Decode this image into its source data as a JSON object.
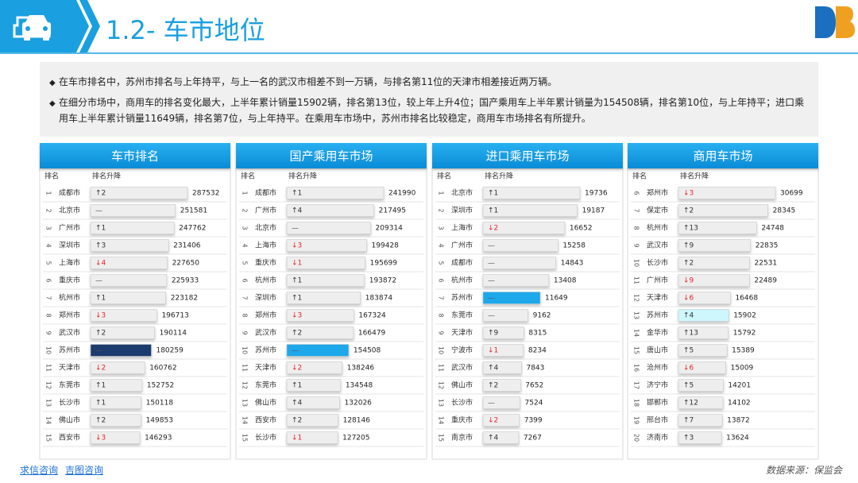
{
  "header": {
    "title": "1.2- 车市地位"
  },
  "bullets": [
    "在车市排名中，苏州市排名与上年持平，与上一名的武汉市相差不到一万辆，与排名第11位的天津市相差接近两万辆。",
    "在细分市场中，商用车的排名变化最大，上半年累计销量15902辆，排名第13位，较上年上升4位；国产乘用车上半年累计销量为154508辆，排名第10位，与上年持平；进口乘用车上半年累计销量11649辆，排名第7位，与上年持平。在乘用车市场中，苏州市排名比较稳定，商用车市场排名有所提升。"
  ],
  "change_colors": {
    "↑": "#333333",
    "↓": "#e0262a",
    "—": "#555555"
  },
  "bar_color": "#eeeeee",
  "panels": [
    {
      "title": "车市排名",
      "rank_header": "排名",
      "change_header": "排名升降",
      "rows": [
        {
          "rank": 1,
          "city": "成都市",
          "change": "↑2",
          "value": 287532
        },
        {
          "rank": 2,
          "city": "北京市",
          "change": "—",
          "value": 251581
        },
        {
          "rank": 3,
          "city": "广州市",
          "change": "↑1",
          "value": 247762
        },
        {
          "rank": 4,
          "city": "深圳市",
          "change": "↑3",
          "value": 231406
        },
        {
          "rank": 5,
          "city": "上海市",
          "change": "↓4",
          "value": 227650
        },
        {
          "rank": 6,
          "city": "重庆市",
          "change": "—",
          "value": 225933
        },
        {
          "rank": 7,
          "city": "杭州市",
          "change": "↑1",
          "value": 223182
        },
        {
          "rank": 8,
          "city": "郑州市",
          "change": "↓3",
          "value": 196713
        },
        {
          "rank": 9,
          "city": "武汉市",
          "change": "↑2",
          "value": 190114
        },
        {
          "rank": 10,
          "city": "苏州市",
          "change": "—",
          "value": 180259,
          "color": "#1c3a6e"
        },
        {
          "rank": 11,
          "city": "天津市",
          "change": "↓2",
          "value": 160762
        },
        {
          "rank": 12,
          "city": "东莞市",
          "change": "↑1",
          "value": 152752
        },
        {
          "rank": 13,
          "city": "长沙市",
          "change": "↑1",
          "value": 150118
        },
        {
          "rank": 14,
          "city": "佛山市",
          "change": "↑2",
          "value": 149853
        },
        {
          "rank": 15,
          "city": "西安市",
          "change": "↓3",
          "value": 146293
        }
      ]
    },
    {
      "title": "国产乘用车市场",
      "rank_header": "排名",
      "change_header": "排名升降",
      "rows": [
        {
          "rank": 1,
          "city": "成都市",
          "change": "↑1",
          "value": 241990
        },
        {
          "rank": 2,
          "city": "广州市",
          "change": "↑4",
          "value": 217495
        },
        {
          "rank": 3,
          "city": "北京市",
          "change": "—",
          "value": 209314
        },
        {
          "rank": 4,
          "city": "上海市",
          "change": "↓3",
          "value": 199428
        },
        {
          "rank": 5,
          "city": "重庆市",
          "change": "↓1",
          "value": 195699
        },
        {
          "rank": 6,
          "city": "杭州市",
          "change": "↑1",
          "value": 193872
        },
        {
          "rank": 7,
          "city": "深圳市",
          "change": "↑1",
          "value": 183874
        },
        {
          "rank": 8,
          "city": "郑州市",
          "change": "↓3",
          "value": 167324
        },
        {
          "rank": 9,
          "city": "武汉市",
          "change": "↑2",
          "value": 166479
        },
        {
          "rank": 10,
          "city": "苏州市",
          "change": "—",
          "value": 154508,
          "color": "#1ba8ea"
        },
        {
          "rank": 11,
          "city": "天津市",
          "change": "↓2",
          "value": 138246
        },
        {
          "rank": 12,
          "city": "东莞市",
          "change": "↑1",
          "value": 134548
        },
        {
          "rank": 13,
          "city": "佛山市",
          "change": "↑4",
          "value": 132026
        },
        {
          "rank": 14,
          "city": "西安市",
          "change": "↑2",
          "value": 128146
        },
        {
          "rank": 15,
          "city": "长沙市",
          "change": "↓1",
          "value": 127205
        }
      ]
    },
    {
      "title": "进口乘用车市场",
      "rank_header": "排名",
      "change_header": "排名升降",
      "rows": [
        {
          "rank": 1,
          "city": "北京市",
          "change": "↑1",
          "value": 19736
        },
        {
          "rank": 2,
          "city": "深圳市",
          "change": "↑1",
          "value": 19187
        },
        {
          "rank": 3,
          "city": "上海市",
          "change": "↓2",
          "value": 16652
        },
        {
          "rank": 4,
          "city": "广州市",
          "change": "—",
          "value": 15258
        },
        {
          "rank": 5,
          "city": "成都市",
          "change": "—",
          "value": 14843
        },
        {
          "rank": 6,
          "city": "杭州市",
          "change": "—",
          "value": 13408
        },
        {
          "rank": 7,
          "city": "苏州市",
          "change": "—",
          "value": 11649,
          "color": "#1ba8ea"
        },
        {
          "rank": 8,
          "city": "东莞市",
          "change": "—",
          "value": 9162
        },
        {
          "rank": 9,
          "city": "天津市",
          "change": "↑9",
          "value": 8315
        },
        {
          "rank": 10,
          "city": "宁波市",
          "change": "↓1",
          "value": 8234
        },
        {
          "rank": 11,
          "city": "武汉市",
          "change": "↑4",
          "value": 7843
        },
        {
          "rank": 12,
          "city": "佛山市",
          "change": "↑2",
          "value": 7652
        },
        {
          "rank": 13,
          "city": "长沙市",
          "change": "—",
          "value": 7524
        },
        {
          "rank": 14,
          "city": "重庆市",
          "change": "↓2",
          "value": 7399
        },
        {
          "rank": 15,
          "city": "南京市",
          "change": "↑4",
          "value": 7267
        }
      ]
    },
    {
      "title": "商用车市场",
      "rank_header": "排名",
      "change_header": "排名升降",
      "rows": [
        {
          "rank": 6,
          "city": "郑州市",
          "change": "↓3",
          "value": 30699
        },
        {
          "rank": 7,
          "city": "保定市",
          "change": "↑2",
          "value": 28345
        },
        {
          "rank": 8,
          "city": "杭州市",
          "change": "↑13",
          "value": 24748
        },
        {
          "rank": 9,
          "city": "武汉市",
          "change": "↑9",
          "value": 22835
        },
        {
          "rank": 10,
          "city": "长沙市",
          "change": "↑2",
          "value": 22531
        },
        {
          "rank": 11,
          "city": "广州市",
          "change": "↓9",
          "value": 22489
        },
        {
          "rank": 12,
          "city": "天津市",
          "change": "↓6",
          "value": 16468
        },
        {
          "rank": 13,
          "city": "苏州市",
          "change": "↑4",
          "value": 15902,
          "color": "#cdf6fd"
        },
        {
          "rank": 14,
          "city": "金华市",
          "change": "↑13",
          "value": 15792
        },
        {
          "rank": 15,
          "city": "唐山市",
          "change": "↑5",
          "value": 15389
        },
        {
          "rank": 16,
          "city": "沧州市",
          "change": "↓6",
          "value": 15009
        },
        {
          "rank": 17,
          "city": "济宁市",
          "change": "↑5",
          "value": 14201
        },
        {
          "rank": 18,
          "city": "邯郸市",
          "change": "↑12",
          "value": 14102
        },
        {
          "rank": 19,
          "city": "邢台市",
          "change": "↑7",
          "value": 13872
        },
        {
          "rank": 20,
          "city": "济南市",
          "change": "↑3",
          "value": 13624
        }
      ]
    }
  ],
  "footer": {
    "links": [
      "求信咨询",
      "吉图咨询"
    ],
    "source": "数据来源：保监会"
  }
}
